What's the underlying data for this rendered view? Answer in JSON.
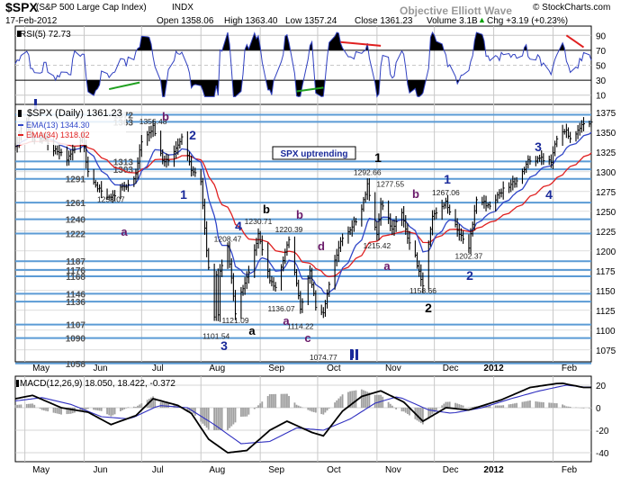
{
  "header": {
    "symbol": "$SPX",
    "description": "(S&P 500 Large Cap Index)",
    "exchange": "INDX",
    "source": "© StockCharts.com",
    "date": "17-Feb-2012",
    "open": "Open 1358.06",
    "high": "High 1363.40",
    "low": "Low 1357.24",
    "close": "Close 1361.23",
    "volume": "Volume 3.1B",
    "change": "Chg +3.19 (+0.23%)",
    "change_arrow": "▲",
    "watermark": "Objective Elliott Wave"
  },
  "colors": {
    "background": "#ffffff",
    "grid": "#c8c8c8",
    "fib_lines": "#5b9bd5",
    "price_bars": "#000000",
    "ema13": "#3046c8",
    "ema34": "#e02020",
    "rsi_line": "#3040c0",
    "rsi_fill": "#000000",
    "macd_line": "#000000",
    "macd_signal": "#3030c0",
    "macd_hist": "#a0a0a0",
    "wave_purple": "#6a1a6a",
    "wave_blue": "#1a2a9a",
    "wave_black": "#000000",
    "trend_red": "#e02020",
    "trend_green": "#20a020"
  },
  "chart_data": [
    {
      "panel": "RSI",
      "type": "line",
      "title": "RSI(5) 72.73",
      "y_ticks": [
        10,
        30,
        50,
        70,
        90
      ],
      "ylim": [
        0,
        100
      ],
      "overbought": 70,
      "oversold": 30,
      "trend_lines": [
        {
          "color": "red",
          "from": [
            "2011-10-13",
            81
          ],
          "to": [
            "2011-11-03",
            76
          ]
        },
        {
          "color": "red",
          "from": [
            "2012-02-08",
            90
          ],
          "to": [
            "2012-02-17",
            74
          ]
        },
        {
          "color": "green",
          "from": [
            "2011-06-14",
            18
          ],
          "to": [
            "2011-06-30",
            27
          ]
        },
        {
          "color": "green",
          "from": [
            "2011-09-20",
            15
          ],
          "to": [
            "2011-10-04",
            20
          ]
        }
      ]
    },
    {
      "panel": "Price",
      "type": "ohlc",
      "title": "$SPX (Daily) 1361.23",
      "legend": [
        {
          "name": "EMA(13) 1344.30",
          "color": "#3046c8"
        },
        {
          "name": "EMA(34) 1318.02",
          "color": "#e02020"
        }
      ],
      "ylim": [
        1060,
        1385
      ],
      "y_ticks": [
        1075,
        1100,
        1125,
        1150,
        1175,
        1200,
        1225,
        1250,
        1275,
        1300,
        1325,
        1350,
        1375
      ],
      "x_range": [
        "2011-04-26",
        "2012-02-21"
      ],
      "x_tick_labels": [
        {
          "label": "May",
          "date": "2011-05-01"
        },
        {
          "label": "Jun",
          "date": "2011-06-01"
        },
        {
          "label": "Jul",
          "date": "2011-07-01"
        },
        {
          "label": "Aug",
          "date": "2011-08-01"
        },
        {
          "label": "Sep",
          "date": "2011-09-01"
        },
        {
          "label": "Oct",
          "date": "2011-10-01"
        },
        {
          "label": "Nov",
          "date": "2011-11-01"
        },
        {
          "label": "Dec",
          "date": "2011-12-01"
        },
        {
          "label": "2012",
          "date": "2012-01-01"
        },
        {
          "label": "Feb",
          "date": "2012-02-01"
        }
      ],
      "fib_levels": [
        {
          "label": "1372",
          "value": 1372
        },
        {
          "label": "1363",
          "value": 1363
        },
        {
          "label": "1313",
          "value": 1313
        },
        {
          "label": "1303",
          "value": 1303
        },
        {
          "label": "1291",
          "value": 1291
        },
        {
          "label": "1261",
          "value": 1261
        },
        {
          "label": "1240",
          "value": 1240
        },
        {
          "label": "1222",
          "value": 1222
        },
        {
          "label": "1187",
          "value": 1187
        },
        {
          "label": "1176",
          "value": 1176
        },
        {
          "label": "1168",
          "value": 1168
        },
        {
          "label": "1146",
          "value": 1146
        },
        {
          "label": "1136",
          "value": 1136
        },
        {
          "label": "1107",
          "value": 1107
        },
        {
          "label": "1090",
          "value": 1090
        },
        {
          "label": "1058",
          "value": 1058
        }
      ],
      "price_path": [
        [
          "2011-04-26",
          1330
        ],
        [
          "2011-04-29",
          1355
        ],
        [
          "2011-05-02",
          1361
        ],
        [
          "2011-05-06",
          1340
        ],
        [
          "2011-05-11",
          1345
        ],
        [
          "2011-05-16",
          1329
        ],
        [
          "2011-05-23",
          1317
        ],
        [
          "2011-05-31",
          1345
        ],
        [
          "2011-06-03",
          1300
        ],
        [
          "2011-06-08",
          1280
        ],
        [
          "2011-06-15",
          1265
        ],
        [
          "2011-06-20",
          1278
        ],
        [
          "2011-06-23",
          1283
        ],
        [
          "2011-06-28",
          1296
        ],
        [
          "2011-07-01",
          1339
        ],
        [
          "2011-07-07",
          1356
        ],
        [
          "2011-07-12",
          1313
        ],
        [
          "2011-07-15",
          1316
        ],
        [
          "2011-07-19",
          1327
        ],
        [
          "2011-07-22",
          1345
        ],
        [
          "2011-07-27",
          1304
        ],
        [
          "2011-08-01",
          1286
        ],
        [
          "2011-08-04",
          1200
        ],
        [
          "2011-08-08",
          1119
        ],
        [
          "2011-08-09",
          1172
        ],
        [
          "2011-08-10",
          1120
        ],
        [
          "2011-08-11",
          1172
        ],
        [
          "2011-08-15",
          1204
        ],
        [
          "2011-08-19",
          1123
        ],
        [
          "2011-08-26",
          1176
        ],
        [
          "2011-08-31",
          1219
        ],
        [
          "2011-09-06",
          1165
        ],
        [
          "2011-09-09",
          1154
        ],
        [
          "2011-09-16",
          1216
        ],
        [
          "2011-09-22",
          1129
        ],
        [
          "2011-09-27",
          1175
        ],
        [
          "2011-09-30",
          1131
        ],
        [
          "2011-10-04",
          1123
        ],
        [
          "2011-10-07",
          1155
        ],
        [
          "2011-10-12",
          1207
        ],
        [
          "2011-10-18",
          1225
        ],
        [
          "2011-10-24",
          1254
        ],
        [
          "2011-10-27",
          1284
        ],
        [
          "2011-11-01",
          1218
        ],
        [
          "2011-11-03",
          1261
        ],
        [
          "2011-11-09",
          1229
        ],
        [
          "2011-11-14",
          1251
        ],
        [
          "2011-11-17",
          1216
        ],
        [
          "2011-11-21",
          1192
        ],
        [
          "2011-11-25",
          1158
        ],
        [
          "2011-11-30",
          1246
        ],
        [
          "2011-12-07",
          1261
        ],
        [
          "2011-12-13",
          1225
        ],
        [
          "2011-12-19",
          1205
        ],
        [
          "2011-12-23",
          1265
        ],
        [
          "2011-12-30",
          1257
        ],
        [
          "2012-01-06",
          1278
        ],
        [
          "2012-01-13",
          1289
        ],
        [
          "2012-01-19",
          1314
        ],
        [
          "2012-01-26",
          1318
        ],
        [
          "2012-01-31",
          1312
        ],
        [
          "2012-02-03",
          1344
        ],
        [
          "2012-02-08",
          1350
        ],
        [
          "2012-02-10",
          1343
        ],
        [
          "2012-02-14",
          1350
        ],
        [
          "2012-02-17",
          1361
        ]
      ],
      "price_annotations": [
        {
          "text": "1356.48",
          "date": "2011-07-07",
          "value": 1356.48
        },
        {
          "text": "1258.07",
          "date": "2011-06-15",
          "value": 1258.07
        },
        {
          "text": "1101.54",
          "date": "2011-08-09",
          "value": 1101.54
        },
        {
          "text": "1121.09",
          "date": "2011-08-19",
          "value": 1121.09
        },
        {
          "text": "1208.47",
          "date": "2011-08-15",
          "value": 1208.47
        },
        {
          "text": "1230.71",
          "date": "2011-08-31",
          "value": 1230.71
        },
        {
          "text": "1136.07",
          "date": "2011-09-12",
          "value": 1136.07
        },
        {
          "text": "1220.39",
          "date": "2011-09-16",
          "value": 1220.39
        },
        {
          "text": "1114.22",
          "date": "2011-09-22",
          "value": 1114.22
        },
        {
          "text": "1074.77",
          "date": "2011-10-04",
          "value": 1074.77
        },
        {
          "text": "1292.66",
          "date": "2011-10-27",
          "value": 1292.66
        },
        {
          "text": "1215.42",
          "date": "2011-11-01",
          "value": 1215.42
        },
        {
          "text": "1277.55",
          "date": "2011-11-08",
          "value": 1277.55
        },
        {
          "text": "1158.66",
          "date": "2011-11-25",
          "value": 1158.66
        },
        {
          "text": "1267.06",
          "date": "2011-12-07",
          "value": 1267.06
        },
        {
          "text": "1202.37",
          "date": "2011-12-19",
          "value": 1202.37
        }
      ],
      "wave_labels": [
        {
          "text": "I",
          "color": "blue"
        },
        {
          "text": "b",
          "color": "purple"
        },
        {
          "text": "2",
          "color": "blue"
        },
        {
          "text": "1",
          "color": "blue"
        },
        {
          "text": "a",
          "color": "purple"
        },
        {
          "text": "4",
          "color": "blue"
        },
        {
          "text": "b",
          "color": "black"
        },
        {
          "text": "3",
          "color": "blue"
        },
        {
          "text": "a",
          "color": "black"
        },
        {
          "text": "b",
          "color": "purple"
        },
        {
          "text": "d",
          "color": "purple"
        },
        {
          "text": "a",
          "color": "purple"
        },
        {
          "text": "c",
          "color": "purple"
        },
        {
          "text": "II",
          "color": "blue"
        },
        {
          "text": "1",
          "color": "black"
        },
        {
          "text": "b",
          "color": "purple"
        },
        {
          "text": "a",
          "color": "purple"
        },
        {
          "text": "2",
          "color": "black"
        },
        {
          "text": "1",
          "color": "blue"
        },
        {
          "text": "2",
          "color": "blue"
        },
        {
          "text": "3",
          "color": "blue"
        },
        {
          "text": "4",
          "color": "blue"
        }
      ],
      "callout": "SPX uptrending"
    },
    {
      "panel": "MACD",
      "type": "line",
      "title": "MACD(12,26,9) 18.050, 18.422, -0.372",
      "y_ticks": [
        -40,
        -20,
        0,
        20
      ],
      "ylim": [
        -48,
        28
      ],
      "macd_path": [
        [
          "2011-04-26",
          8
        ],
        [
          "2011-05-05",
          11
        ],
        [
          "2011-05-20",
          0
        ],
        [
          "2011-06-03",
          -4
        ],
        [
          "2011-06-15",
          -15
        ],
        [
          "2011-06-28",
          -7
        ],
        [
          "2011-07-07",
          8
        ],
        [
          "2011-07-20",
          2
        ],
        [
          "2011-07-27",
          -5
        ],
        [
          "2011-08-05",
          -28
        ],
        [
          "2011-08-15",
          -40
        ],
        [
          "2011-08-25",
          -38
        ],
        [
          "2011-09-06",
          -20
        ],
        [
          "2011-09-15",
          -12
        ],
        [
          "2011-09-28",
          -22
        ],
        [
          "2011-10-04",
          -25
        ],
        [
          "2011-10-14",
          -3
        ],
        [
          "2011-10-24",
          10
        ],
        [
          "2011-11-03",
          15
        ],
        [
          "2011-11-15",
          5
        ],
        [
          "2011-11-25",
          -12
        ],
        [
          "2011-12-07",
          0
        ],
        [
          "2011-12-19",
          -2
        ],
        [
          "2012-01-05",
          7
        ],
        [
          "2012-01-20",
          18
        ],
        [
          "2012-02-05",
          22
        ],
        [
          "2012-02-17",
          18
        ]
      ],
      "signal_path": [
        [
          "2011-04-26",
          6
        ],
        [
          "2011-05-10",
          9
        ],
        [
          "2011-05-25",
          3
        ],
        [
          "2011-06-10",
          -8
        ],
        [
          "2011-06-25",
          -10
        ],
        [
          "2011-07-10",
          2
        ],
        [
          "2011-07-25",
          0
        ],
        [
          "2011-08-08",
          -15
        ],
        [
          "2011-08-22",
          -32
        ],
        [
          "2011-09-06",
          -30
        ],
        [
          "2011-09-20",
          -18
        ],
        [
          "2011-10-04",
          -20
        ],
        [
          "2011-10-18",
          -10
        ],
        [
          "2011-10-31",
          4
        ],
        [
          "2011-11-12",
          10
        ],
        [
          "2011-11-28",
          -2
        ],
        [
          "2011-12-10",
          -5
        ],
        [
          "2011-12-26",
          0
        ],
        [
          "2012-01-10",
          8
        ],
        [
          "2012-01-25",
          15
        ],
        [
          "2012-02-08",
          20
        ],
        [
          "2012-02-17",
          18.4
        ]
      ]
    }
  ]
}
